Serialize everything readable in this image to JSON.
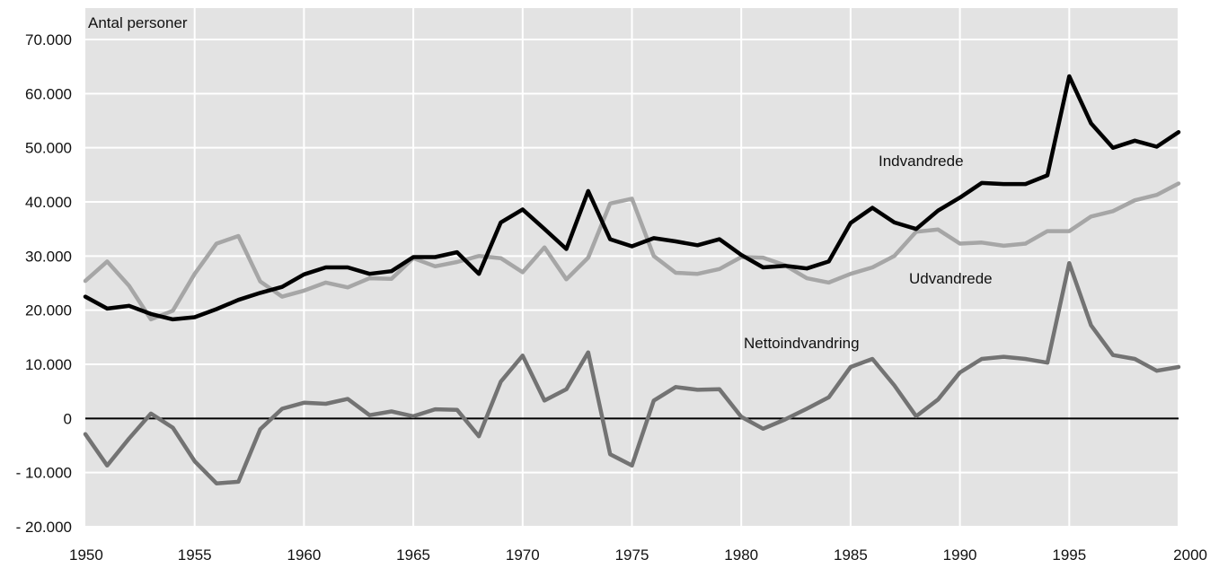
{
  "chart_data": {
    "type": "line",
    "title": "",
    "ylabel": "Antal personer",
    "xlabel": "",
    "xlim": [
      1950,
      2000
    ],
    "ylim": [
      -20000,
      70000
    ],
    "grid": true,
    "legend": "none",
    "x_ticks": [
      "1950",
      "1955",
      "1960",
      "1965",
      "1970",
      "1975",
      "1980",
      "1985",
      "1990",
      "1995",
      "2000"
    ],
    "y_ticks": [
      {
        "value": -20000,
        "label": "- 20.000"
      },
      {
        "value": -10000,
        "label": "- 10.000"
      },
      {
        "value": 0,
        "label": "0"
      },
      {
        "value": 10000,
        "label": "10.000"
      },
      {
        "value": 20000,
        "label": "20.000"
      },
      {
        "value": 30000,
        "label": "30.000"
      },
      {
        "value": 40000,
        "label": "40.000"
      },
      {
        "value": 50000,
        "label": "50.000"
      },
      {
        "value": 60000,
        "label": "60.000"
      },
      {
        "value": 70000,
        "label": "70.000"
      }
    ],
    "x": [
      1950,
      1951,
      1952,
      1953,
      1954,
      1955,
      1956,
      1957,
      1958,
      1959,
      1960,
      1961,
      1962,
      1963,
      1964,
      1965,
      1966,
      1967,
      1968,
      1969,
      1970,
      1971,
      1972,
      1973,
      1974,
      1975,
      1976,
      1977,
      1978,
      1979,
      1980,
      1981,
      1982,
      1983,
      1984,
      1985,
      1986,
      1987,
      1988,
      1989,
      1990,
      1991,
      1992,
      1993,
      1994,
      1995,
      1996,
      1997,
      1998,
      1999,
      2000
    ],
    "series": [
      {
        "name": "Indvandrede",
        "color": "#000000",
        "values": [
          22500,
          20300,
          20800,
          19300,
          18300,
          18700,
          20200,
          21900,
          23200,
          24300,
          26600,
          27900,
          27900,
          26700,
          27200,
          29800,
          29800,
          30700,
          26700,
          36200,
          38600,
          35000,
          31300,
          42000,
          33100,
          31800,
          33300,
          32700,
          32000,
          33100,
          30200,
          27900,
          28200,
          27700,
          29000,
          36100,
          38900,
          36200,
          35000,
          38400,
          40800,
          43500,
          43300,
          43300,
          44900,
          63200,
          54500,
          50000,
          51300,
          50200,
          52900
        ]
      },
      {
        "name": "Udvandrede",
        "color": "#a6a6a6",
        "values": [
          25400,
          29000,
          24500,
          18300,
          19900,
          26700,
          32300,
          33700,
          25300,
          22500,
          23600,
          25100,
          24200,
          25900,
          25800,
          29600,
          28100,
          28900,
          30000,
          29600,
          27000,
          31600,
          25700,
          29700,
          39700,
          40600,
          30000,
          26900,
          26700,
          27600,
          29800,
          29700,
          28300,
          25900,
          25100,
          26700,
          27900,
          30000,
          34500,
          34900,
          32300,
          32500,
          31900,
          32300,
          34600,
          34600,
          37300,
          38300,
          40300,
          41300,
          43400
        ]
      },
      {
        "name": "Nettoindvandring",
        "color": "#737373",
        "values": [
          -2900,
          -8700,
          -3700,
          900,
          -1700,
          -7900,
          -12000,
          -11700,
          -2000,
          1800,
          2900,
          2700,
          3600,
          600,
          1300,
          400,
          1700,
          1600,
          -3300,
          6800,
          11600,
          3300,
          5400,
          12200,
          -6600,
          -8700,
          3300,
          5800,
          5300,
          5400,
          300,
          -1900,
          -200,
          1800,
          3900,
          9500,
          11000,
          6100,
          400,
          3500,
          8500,
          11000,
          11400,
          11000,
          10300,
          28700,
          17200,
          11700,
          11000,
          8800,
          9500
        ]
      }
    ],
    "annotations": [
      "Indvandrede",
      "Udvandrede",
      "Nettoindvandring"
    ]
  },
  "colors": {
    "plot_background": "#e3e3e3",
    "grid": "#ffffff",
    "zero_line": "#000000"
  }
}
